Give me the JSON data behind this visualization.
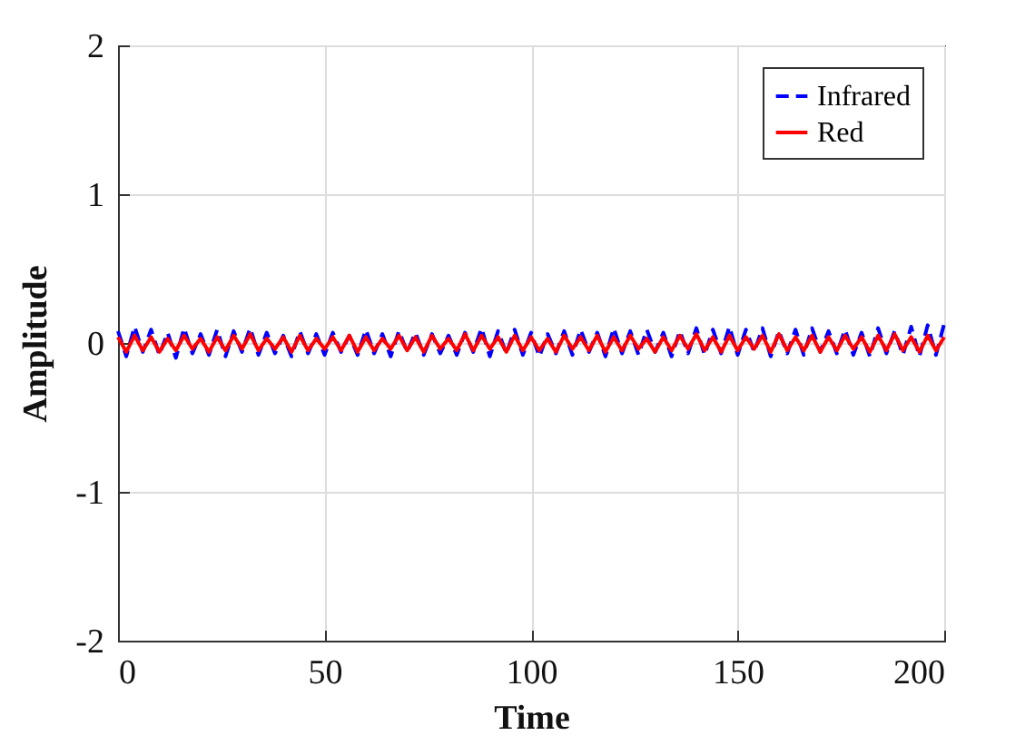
{
  "chart_data": {
    "type": "line",
    "xlabel": "Time",
    "ylabel": "Amplitude",
    "x": [
      0,
      2,
      4,
      6,
      8,
      10,
      12,
      14,
      16,
      18,
      20,
      22,
      24,
      26,
      28,
      30,
      32,
      34,
      36,
      38,
      40,
      42,
      44,
      46,
      48,
      50,
      52,
      54,
      56,
      58,
      60,
      62,
      64,
      66,
      68,
      70,
      72,
      74,
      76,
      78,
      80,
      82,
      84,
      86,
      88,
      90,
      92,
      94,
      96,
      98,
      100,
      102,
      104,
      106,
      108,
      110,
      112,
      114,
      116,
      118,
      120,
      122,
      124,
      126,
      128,
      130,
      132,
      134,
      136,
      138,
      140,
      142,
      144,
      146,
      148,
      150,
      152,
      154,
      156,
      158,
      160,
      162,
      164,
      166,
      168,
      170,
      172,
      174,
      176,
      178,
      180,
      182,
      184,
      186,
      188,
      190,
      192,
      194,
      196,
      198,
      200
    ],
    "series": [
      {
        "name": "Infrared",
        "color": "#0000ff",
        "line_style": "dashed",
        "values": [
          0.08,
          -0.09,
          0.11,
          -0.06,
          0.09,
          -0.08,
          0.07,
          -0.1,
          0.1,
          -0.07,
          0.06,
          -0.08,
          0.09,
          -0.09,
          0.08,
          -0.06,
          0.1,
          -0.08,
          0.07,
          -0.07,
          0.05,
          -0.09,
          0.08,
          -0.07,
          0.06,
          -0.08,
          0.07,
          -0.06,
          0.05,
          -0.08,
          0.09,
          -0.07,
          0.06,
          -0.09,
          0.08,
          -0.06,
          0.07,
          -0.08,
          0.06,
          -0.07,
          0.05,
          -0.08,
          0.07,
          -0.06,
          0.1,
          -0.09,
          0.08,
          -0.07,
          0.09,
          -0.08,
          0.07,
          -0.09,
          0.06,
          -0.07,
          0.08,
          -0.08,
          0.09,
          -0.06,
          0.07,
          -0.09,
          0.1,
          -0.07,
          0.08,
          -0.08,
          0.09,
          -0.06,
          0.07,
          -0.09,
          0.08,
          -0.07,
          0.1,
          -0.08,
          0.09,
          -0.07,
          0.11,
          -0.08,
          0.09,
          -0.06,
          0.1,
          -0.09,
          0.08,
          -0.07,
          0.09,
          -0.08,
          0.1,
          -0.06,
          0.08,
          -0.07,
          0.09,
          -0.08,
          0.07,
          -0.09,
          0.1,
          -0.07,
          0.08,
          -0.08,
          0.11,
          -0.09,
          0.12,
          -0.08,
          0.13
        ]
      },
      {
        "name": "Red",
        "color": "#ff0000",
        "line_style": "solid",
        "values": [
          0.04,
          -0.06,
          0.05,
          -0.05,
          0.04,
          -0.06,
          0.03,
          -0.05,
          0.05,
          -0.04,
          0.03,
          -0.06,
          0.04,
          -0.05,
          0.05,
          -0.04,
          0.06,
          -0.05,
          0.03,
          -0.04,
          0.04,
          -0.06,
          0.05,
          -0.05,
          0.03,
          -0.04,
          0.04,
          -0.05,
          0.05,
          -0.06,
          0.04,
          -0.05,
          0.03,
          -0.04,
          0.05,
          -0.05,
          0.04,
          -0.06,
          0.05,
          -0.04,
          0.03,
          -0.05,
          0.06,
          -0.05,
          0.05,
          -0.04,
          0.04,
          -0.06,
          0.05,
          -0.05,
          0.04,
          -0.05,
          0.03,
          -0.06,
          0.05,
          -0.04,
          0.04,
          -0.05,
          0.05,
          -0.06,
          0.04,
          -0.05,
          0.05,
          -0.04,
          0.03,
          -0.06,
          0.04,
          -0.05,
          0.05,
          -0.04,
          0.06,
          -0.05,
          0.04,
          -0.06,
          0.05,
          -0.05,
          0.04,
          -0.04,
          0.05,
          -0.06,
          0.06,
          -0.05,
          0.04,
          -0.05,
          0.05,
          -0.06,
          0.04,
          -0.05,
          0.05,
          -0.04,
          0.04,
          -0.06,
          0.05,
          -0.05,
          0.06,
          -0.05,
          0.04,
          -0.06,
          0.05,
          -0.05,
          0.04
        ]
      }
    ],
    "xlim": [
      0,
      200
    ],
    "xticks": [
      0,
      50,
      100,
      150,
      200
    ],
    "ylim": [
      -2,
      2
    ],
    "yticks": [
      -2,
      -1,
      0,
      1,
      2
    ],
    "grid": true,
    "legend": "top right"
  }
}
